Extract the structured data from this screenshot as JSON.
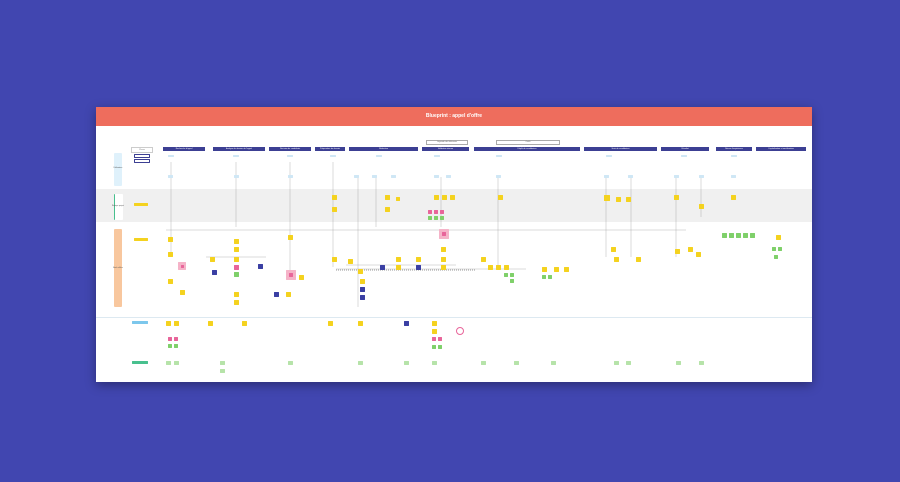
{
  "board": {
    "title": "Blueprint : appel d'offre"
  },
  "colors": {
    "background": "#4146b0",
    "header": "#ee6d5d",
    "column_header": "#3c3f93",
    "sticky_yellow": "#f4d21f",
    "sticky_green": "#7fd06a",
    "sticky_pink": "#e8659a",
    "sticky_blue": "#3a3fa3",
    "backstage_band": "#f0f0f0",
    "lane_blue": "#dff1fb",
    "lane_green": "#48c08e",
    "lane_orange": "#f8c79e"
  },
  "columns": [
    "Phase",
    "Recherche d'appel",
    "Analyse du dossier de l'appel",
    "Décision de candidater",
    "Préparation du dossier",
    "Rédaction",
    "Validation interne",
    "Dépôt de candidature",
    "Suivi de candidature",
    "Résultat",
    "Retour d'expérience",
    "Capitalisation et amélioration"
  ],
  "legend": [
    "Légende des éléments",
    "Outils"
  ],
  "lanes": [
    {
      "tag": "Utilisateur"
    },
    {
      "tag": "Équipe projet"
    },
    {
      "tag": "Back office"
    }
  ]
}
